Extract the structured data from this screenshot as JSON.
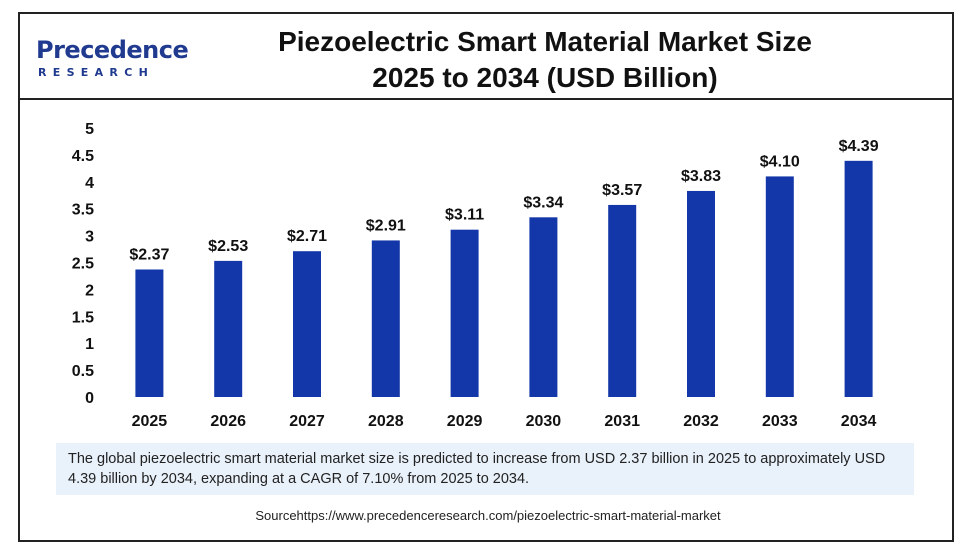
{
  "brand": {
    "name": "Precedence",
    "sub": "RESEARCH",
    "color": "#1f3a8f"
  },
  "chart_data": {
    "type": "bar",
    "title_lines": [
      "Piezoelectric Smart Material Market Size",
      "2025 to 2034 (USD Billion)"
    ],
    "categories": [
      "2025",
      "2026",
      "2027",
      "2028",
      "2029",
      "2030",
      "2031",
      "2032",
      "2033",
      "2034"
    ],
    "values": [
      2.37,
      2.53,
      2.71,
      2.91,
      3.11,
      3.34,
      3.57,
      3.83,
      4.1,
      4.39
    ],
    "data_labels": [
      "$2.37",
      "$2.53",
      "$2.71",
      "$2.91",
      "$3.11",
      "$3.34",
      "$3.57",
      "$3.83",
      "$4.10",
      "$4.39"
    ],
    "y_ticks": [
      "0",
      "0.5",
      "1",
      "1.5",
      "2",
      "2.5",
      "3",
      "3.5",
      "4",
      "4.5",
      "5"
    ],
    "ylim": [
      0,
      5
    ],
    "grid": false,
    "legend": "none",
    "bar_color": "#1337a8"
  },
  "caption": "The global piezoelectric smart material market size is predicted to increase from USD 2.37 billion in 2025 to approximately USD 4.39 billion by 2034, expanding at a CAGR of 7.10% from 2025 to 2034.",
  "source": "Sourcehttps://www.precedenceresearch.com/piezoelectric-smart-material-market"
}
